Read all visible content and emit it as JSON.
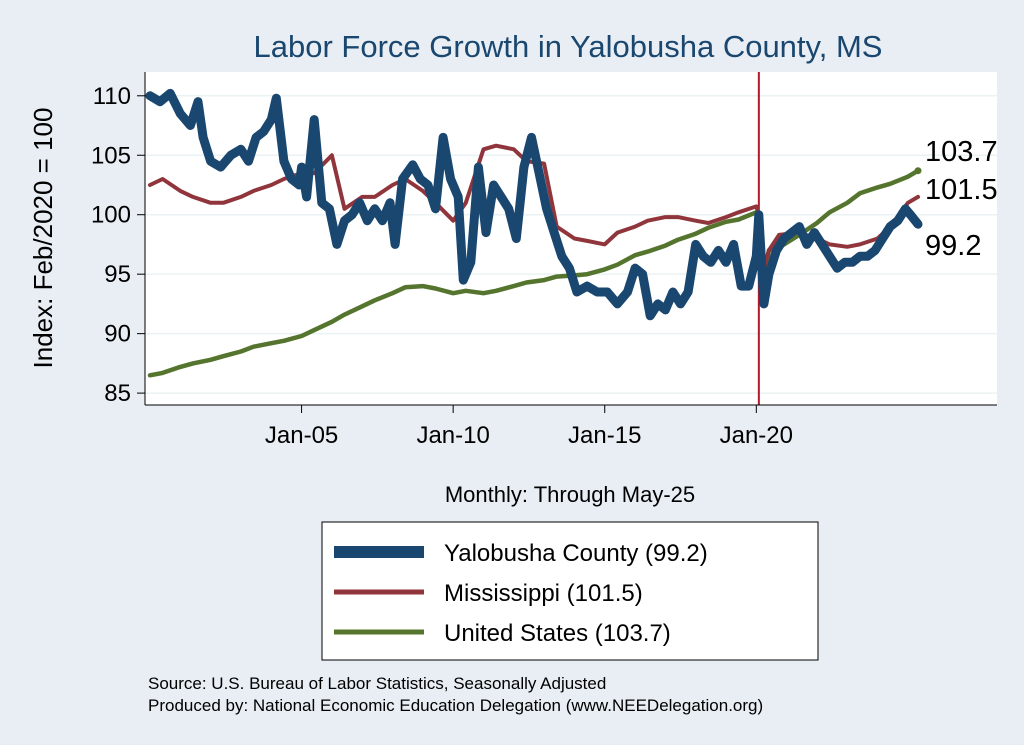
{
  "chart_data": {
    "type": "line",
    "title": "Labor Force Growth in Yalobusha  County, MS",
    "xlabel": "Monthly: Through May-25",
    "ylabel": "Index: Feb/2020 = 100",
    "x_range": [
      "2000-01",
      "2025-05"
    ],
    "ylim": [
      84,
      112
    ],
    "yticks": [
      85,
      90,
      95,
      100,
      105,
      110
    ],
    "xticks": [
      {
        "date": "2005-01",
        "label": "Jan-05"
      },
      {
        "date": "2010-01",
        "label": "Jan-10"
      },
      {
        "date": "2015-01",
        "label": "Jan-15"
      },
      {
        "date": "2020-01",
        "label": "Jan-20"
      }
    ],
    "reference_line": {
      "date": "2020-02",
      "color": "#b2182b"
    },
    "grid": "horizontal",
    "legend_position": "bottom",
    "series": [
      {
        "name": "Yalobusha  County (99.2)",
        "color": "#1a476f",
        "end_label": "99.2",
        "points": [
          [
            "2000-01",
            110.0
          ],
          [
            "2000-05",
            109.5
          ],
          [
            "2000-09",
            110.2
          ],
          [
            "2001-01",
            108.5
          ],
          [
            "2001-05",
            107.5
          ],
          [
            "2001-08",
            109.5
          ],
          [
            "2001-10",
            106.5
          ],
          [
            "2002-01",
            104.5
          ],
          [
            "2002-05",
            104.0
          ],
          [
            "2002-09",
            105.0
          ],
          [
            "2003-01",
            105.5
          ],
          [
            "2003-04",
            104.5
          ],
          [
            "2003-07",
            106.5
          ],
          [
            "2003-10",
            107.0
          ],
          [
            "2004-01",
            108.0
          ],
          [
            "2004-03",
            109.8
          ],
          [
            "2004-06",
            104.5
          ],
          [
            "2004-09",
            103.0
          ],
          [
            "2004-12",
            102.5
          ],
          [
            "2005-01",
            104.0
          ],
          [
            "2005-03",
            101.5
          ],
          [
            "2005-06",
            108.0
          ],
          [
            "2005-09",
            101.0
          ],
          [
            "2005-12",
            100.5
          ],
          [
            "2006-03",
            97.5
          ],
          [
            "2006-06",
            99.5
          ],
          [
            "2006-09",
            100.0
          ],
          [
            "2006-12",
            101.0
          ],
          [
            "2007-03",
            99.5
          ],
          [
            "2007-06",
            100.5
          ],
          [
            "2007-09",
            99.5
          ],
          [
            "2007-12",
            101.0
          ],
          [
            "2008-02",
            97.5
          ],
          [
            "2008-05",
            103.0
          ],
          [
            "2008-09",
            104.2
          ],
          [
            "2008-12",
            103.0
          ],
          [
            "2009-03",
            102.5
          ],
          [
            "2009-06",
            100.5
          ],
          [
            "2009-09",
            106.5
          ],
          [
            "2009-12",
            103.0
          ],
          [
            "2010-03",
            101.5
          ],
          [
            "2010-05",
            94.5
          ],
          [
            "2010-08",
            96.0
          ],
          [
            "2010-11",
            104.0
          ],
          [
            "2011-02",
            98.5
          ],
          [
            "2011-05",
            102.5
          ],
          [
            "2011-08",
            101.5
          ],
          [
            "2011-11",
            100.5
          ],
          [
            "2012-02",
            98.0
          ],
          [
            "2012-05",
            104.0
          ],
          [
            "2012-08",
            106.5
          ],
          [
            "2012-11",
            103.5
          ],
          [
            "2013-02",
            100.5
          ],
          [
            "2013-05",
            98.5
          ],
          [
            "2013-08",
            96.5
          ],
          [
            "2013-11",
            95.5
          ],
          [
            "2014-02",
            93.5
          ],
          [
            "2014-06",
            94.0
          ],
          [
            "2014-10",
            93.5
          ],
          [
            "2015-02",
            93.5
          ],
          [
            "2015-06",
            92.5
          ],
          [
            "2015-10",
            93.5
          ],
          [
            "2016-01",
            95.5
          ],
          [
            "2016-04",
            95.0
          ],
          [
            "2016-07",
            91.5
          ],
          [
            "2016-10",
            92.5
          ],
          [
            "2017-01",
            92.0
          ],
          [
            "2017-04",
            93.5
          ],
          [
            "2017-07",
            92.5
          ],
          [
            "2017-10",
            93.5
          ],
          [
            "2018-01",
            97.5
          ],
          [
            "2018-04",
            96.5
          ],
          [
            "2018-07",
            96.0
          ],
          [
            "2018-10",
            97.0
          ],
          [
            "2019-01",
            96.0
          ],
          [
            "2019-04",
            97.5
          ],
          [
            "2019-07",
            94.0
          ],
          [
            "2019-10",
            94.0
          ],
          [
            "2020-01",
            96.5
          ],
          [
            "2020-02",
            100.0
          ],
          [
            "2020-04",
            92.5
          ],
          [
            "2020-06",
            95.0
          ],
          [
            "2020-09",
            97.0
          ],
          [
            "2020-12",
            98.0
          ],
          [
            "2021-03",
            98.5
          ],
          [
            "2021-06",
            99.0
          ],
          [
            "2021-09",
            97.5
          ],
          [
            "2021-12",
            98.5
          ],
          [
            "2022-03",
            97.5
          ],
          [
            "2022-06",
            96.5
          ],
          [
            "2022-09",
            95.5
          ],
          [
            "2022-12",
            96.0
          ],
          [
            "2023-03",
            96.0
          ],
          [
            "2023-06",
            96.5
          ],
          [
            "2023-09",
            96.5
          ],
          [
            "2023-12",
            97.0
          ],
          [
            "2024-03",
            98.0
          ],
          [
            "2024-06",
            99.0
          ],
          [
            "2024-09",
            99.5
          ],
          [
            "2024-12",
            100.5
          ],
          [
            "2025-02",
            100.0
          ],
          [
            "2025-05",
            99.2
          ]
        ]
      },
      {
        "name": "Mississippi (101.5)",
        "color": "#90353b",
        "end_label": "101.5",
        "points": [
          [
            "2000-01",
            102.5
          ],
          [
            "2000-06",
            103.0
          ],
          [
            "2001-01",
            102.0
          ],
          [
            "2001-06",
            101.5
          ],
          [
            "2002-01",
            101.0
          ],
          [
            "2002-06",
            101.0
          ],
          [
            "2003-01",
            101.5
          ],
          [
            "2003-06",
            102.0
          ],
          [
            "2004-01",
            102.5
          ],
          [
            "2004-06",
            103.0
          ],
          [
            "2005-01",
            103.5
          ],
          [
            "2005-06",
            103.5
          ],
          [
            "2006-01",
            105.0
          ],
          [
            "2006-06",
            100.5
          ],
          [
            "2007-01",
            101.5
          ],
          [
            "2007-06",
            101.5
          ],
          [
            "2008-01",
            102.5
          ],
          [
            "2008-06",
            103.0
          ],
          [
            "2009-01",
            102.0
          ],
          [
            "2009-06",
            101.0
          ],
          [
            "2010-01",
            99.5
          ],
          [
            "2010-06",
            101.0
          ],
          [
            "2011-01",
            105.5
          ],
          [
            "2011-06",
            105.8
          ],
          [
            "2012-01",
            105.5
          ],
          [
            "2012-06",
            104.5
          ],
          [
            "2013-01",
            104.3
          ],
          [
            "2013-06",
            99.0
          ],
          [
            "2014-01",
            98.0
          ],
          [
            "2014-06",
            97.8
          ],
          [
            "2015-01",
            97.5
          ],
          [
            "2015-06",
            98.5
          ],
          [
            "2016-01",
            99.0
          ],
          [
            "2016-06",
            99.5
          ],
          [
            "2017-01",
            99.8
          ],
          [
            "2017-06",
            99.8
          ],
          [
            "2018-01",
            99.5
          ],
          [
            "2018-06",
            99.3
          ],
          [
            "2019-01",
            99.8
          ],
          [
            "2019-06",
            100.2
          ],
          [
            "2020-01",
            100.7
          ],
          [
            "2020-02",
            100.0
          ],
          [
            "2020-04",
            95.5
          ],
          [
            "2020-06",
            97.0
          ],
          [
            "2020-10",
            98.3
          ],
          [
            "2021-06",
            98.5
          ],
          [
            "2022-01",
            98.0
          ],
          [
            "2022-06",
            97.5
          ],
          [
            "2023-01",
            97.3
          ],
          [
            "2023-06",
            97.5
          ],
          [
            "2024-01",
            98.0
          ],
          [
            "2024-06",
            99.0
          ],
          [
            "2025-01",
            101.0
          ],
          [
            "2025-05",
            101.5
          ]
        ]
      },
      {
        "name": "United States (103.7)",
        "color": "#55752f",
        "end_label": "103.7",
        "points": [
          [
            "2000-01",
            86.5
          ],
          [
            "2000-06",
            86.7
          ],
          [
            "2001-01",
            87.2
          ],
          [
            "2001-06",
            87.5
          ],
          [
            "2002-01",
            87.8
          ],
          [
            "2002-06",
            88.1
          ],
          [
            "2003-01",
            88.5
          ],
          [
            "2003-06",
            88.9
          ],
          [
            "2004-01",
            89.2
          ],
          [
            "2004-06",
            89.4
          ],
          [
            "2005-01",
            89.8
          ],
          [
            "2005-06",
            90.3
          ],
          [
            "2006-01",
            91.0
          ],
          [
            "2006-06",
            91.6
          ],
          [
            "2007-01",
            92.3
          ],
          [
            "2007-06",
            92.8
          ],
          [
            "2008-01",
            93.4
          ],
          [
            "2008-06",
            93.9
          ],
          [
            "2009-01",
            94.0
          ],
          [
            "2009-06",
            93.8
          ],
          [
            "2010-01",
            93.4
          ],
          [
            "2010-06",
            93.6
          ],
          [
            "2011-01",
            93.4
          ],
          [
            "2011-06",
            93.6
          ],
          [
            "2012-01",
            94.0
          ],
          [
            "2012-06",
            94.3
          ],
          [
            "2013-01",
            94.5
          ],
          [
            "2013-06",
            94.8
          ],
          [
            "2014-01",
            94.9
          ],
          [
            "2014-06",
            95.0
          ],
          [
            "2015-01",
            95.4
          ],
          [
            "2015-06",
            95.8
          ],
          [
            "2016-01",
            96.6
          ],
          [
            "2016-06",
            96.9
          ],
          [
            "2017-01",
            97.4
          ],
          [
            "2017-06",
            97.9
          ],
          [
            "2018-01",
            98.4
          ],
          [
            "2018-06",
            98.9
          ],
          [
            "2019-01",
            99.4
          ],
          [
            "2019-06",
            99.6
          ],
          [
            "2020-01",
            100.2
          ],
          [
            "2020-02",
            100.0
          ],
          [
            "2020-04",
            94.8
          ],
          [
            "2020-06",
            97.0
          ],
          [
            "2020-12",
            97.5
          ],
          [
            "2021-06",
            98.3
          ],
          [
            "2022-01",
            99.3
          ],
          [
            "2022-06",
            100.2
          ],
          [
            "2023-01",
            101.0
          ],
          [
            "2023-06",
            101.8
          ],
          [
            "2024-01",
            102.3
          ],
          [
            "2024-06",
            102.6
          ],
          [
            "2025-01",
            103.2
          ],
          [
            "2025-05",
            103.7
          ]
        ]
      }
    ]
  },
  "source_text": "Source: U.S. Bureau of Labor Statistics, Seasonally Adjusted",
  "produced_text": "Produced by: National Economic Education Delegation (www.NEEDelegation.org)"
}
